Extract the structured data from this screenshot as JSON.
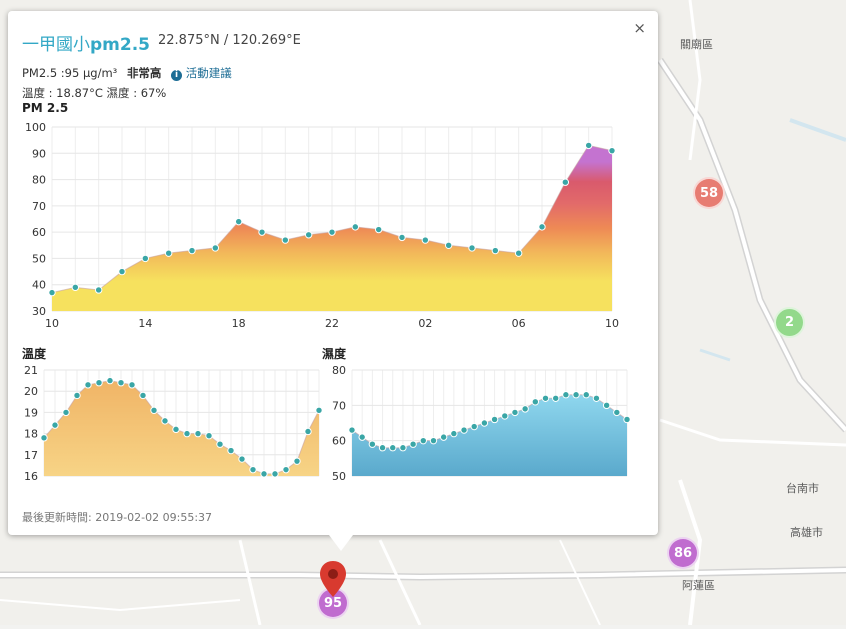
{
  "map": {
    "places": [
      "關廟區",
      "台南市",
      "高雄市",
      "阿蓮區"
    ],
    "markers": [
      {
        "value": "58",
        "color": "#e77c72"
      },
      {
        "value": "2",
        "color": "#93d98b"
      },
      {
        "value": "86",
        "color": "#c06ccf"
      },
      {
        "value": "95",
        "color": "#c06ccf"
      }
    ],
    "pin_color": "#d83a2f"
  },
  "popup": {
    "close": "×",
    "title_prefix": "一甲國小",
    "title_pm": "pm2.5",
    "coords": "22.875°N / 120.269°E",
    "pm_text": "PM2.5 :95 μg/m³",
    "level": "非常高",
    "info_icon": "i",
    "advice": "活動建議",
    "weather_text": "溫度 : 18.87°C 濕度 : 67%",
    "updated": "最後更新時間: 2019-02-02 09:55:37"
  },
  "chart_data": [
    {
      "type": "area",
      "title": "PM 2.5",
      "ylim": [
        30,
        100
      ],
      "yticks": [
        30,
        40,
        50,
        60,
        70,
        80,
        90,
        100
      ],
      "xticks": [
        "10",
        "14",
        "18",
        "22",
        "02",
        "06",
        "10"
      ],
      "x": [
        0,
        1,
        2,
        3,
        4,
        5,
        6,
        7,
        8,
        9,
        10,
        11,
        12,
        13,
        14,
        15,
        16,
        17,
        18,
        19,
        20,
        21,
        22,
        23,
        24
      ],
      "values": [
        37,
        39,
        38,
        45,
        50,
        52,
        53,
        54,
        64,
        60,
        57,
        59,
        60,
        62,
        61,
        58,
        57,
        55,
        54,
        53,
        52,
        62,
        79,
        93,
        91
      ],
      "grid": true,
      "colors": [
        "#f6e15e",
        "#f2b85a",
        "#ee8a55",
        "#e26a6a",
        "#c473d0"
      ]
    },
    {
      "type": "area",
      "title": "溫度",
      "ylim": [
        16,
        21
      ],
      "yticks": [
        16,
        17,
        18,
        19,
        20,
        21
      ],
      "values": [
        17.8,
        18.4,
        19.0,
        19.8,
        20.3,
        20.4,
        20.5,
        20.4,
        20.3,
        19.8,
        19.1,
        18.6,
        18.2,
        18.0,
        18.0,
        17.9,
        17.5,
        17.2,
        16.8,
        16.3,
        16.1,
        16.1,
        16.3,
        16.7,
        18.1,
        19.1
      ],
      "grid": true,
      "colors": [
        "#f7d27c",
        "#f0b768"
      ]
    },
    {
      "type": "area",
      "title": "濕度",
      "ylim": [
        50,
        80
      ],
      "yticks": [
        50,
        60,
        70,
        80
      ],
      "values": [
        63,
        61,
        59,
        58,
        58,
        58,
        59,
        60,
        60,
        61,
        62,
        63,
        64,
        65,
        66,
        67,
        68,
        69,
        71,
        72,
        72,
        73,
        73,
        73,
        72,
        70,
        68,
        66
      ],
      "grid": true,
      "colors": [
        "#8ad4ec",
        "#4fa2c6"
      ]
    }
  ]
}
